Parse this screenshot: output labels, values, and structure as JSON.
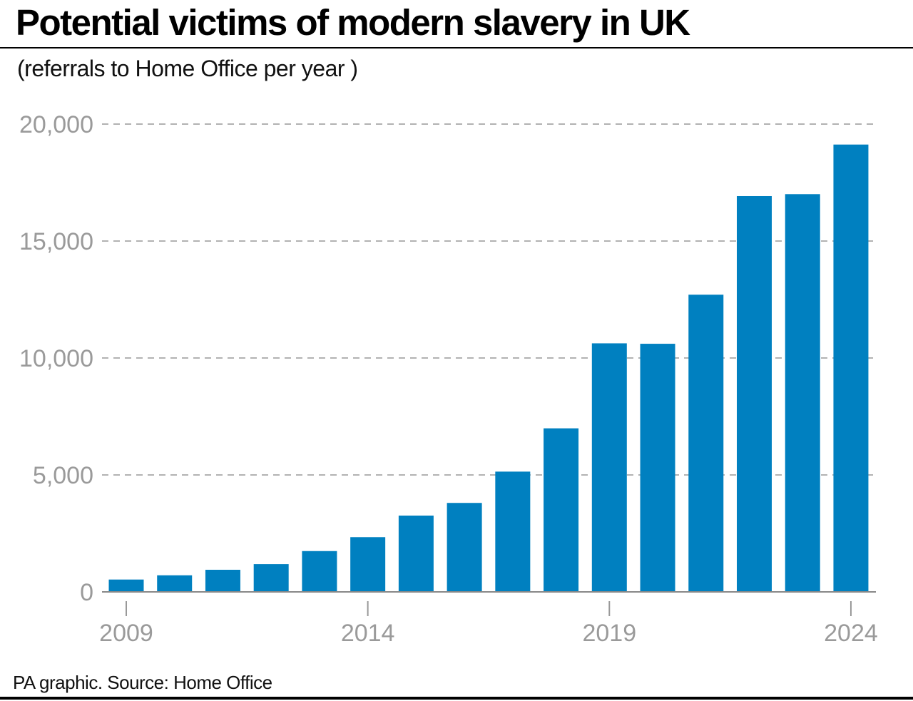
{
  "title": "Potential victims of modern slavery in UK",
  "subtitle": "(referrals to Home Office per year )",
  "footer": "PA graphic. Source: Home Office",
  "colors": {
    "bar": "#0080c0",
    "grid": "#999999",
    "axis_text": "#9a9a9a"
  },
  "chart_data": {
    "type": "bar",
    "title": "Potential victims of modern slavery in UK",
    "subtitle": "(referrals to Home Office per year )",
    "categories": [
      2009,
      2010,
      2011,
      2012,
      2013,
      2014,
      2015,
      2016,
      2017,
      2018,
      2019,
      2020,
      2021,
      2022,
      2023,
      2024
    ],
    "values": [
      528,
      710,
      946,
      1186,
      1745,
      2340,
      3262,
      3804,
      5142,
      6993,
      10627,
      10608,
      12706,
      16921,
      17004,
      19125
    ],
    "ylim": [
      0,
      20000
    ],
    "yticks": [
      0,
      5000,
      10000,
      15000,
      20000
    ],
    "ytick_labels": [
      "0",
      "5,000",
      "10,000",
      "15,000",
      "20,000"
    ],
    "xtick_labels": [
      "2009",
      "2014",
      "2019",
      "2024"
    ],
    "grid": "horizontal dashed",
    "legend": "none"
  }
}
